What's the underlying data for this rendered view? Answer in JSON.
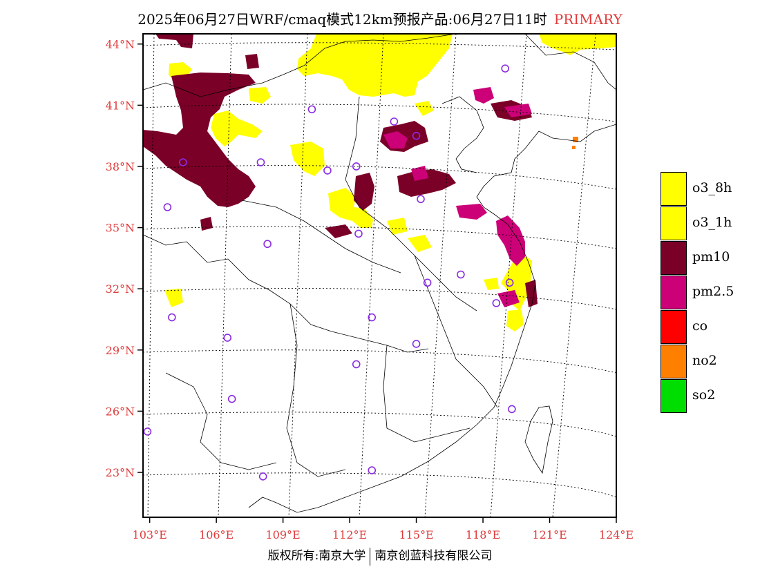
{
  "title": {
    "main": "2025年06月27日WRF/cmaq模式12km预报产品:06月27日11时",
    "tag": "PRIMARY"
  },
  "map": {
    "lon_range": [
      102.7,
      124
    ],
    "lat_range": [
      20.8,
      44.5
    ],
    "lat_ticks": [
      {
        "value": 44,
        "label": "44°N"
      },
      {
        "value": 41,
        "label": "41°N"
      },
      {
        "value": 38,
        "label": "38°N"
      },
      {
        "value": 35,
        "label": "35°N"
      },
      {
        "value": 32,
        "label": "32°N"
      },
      {
        "value": 29,
        "label": "29°N"
      },
      {
        "value": 26,
        "label": "26°N"
      },
      {
        "value": 23,
        "label": "23°N"
      }
    ],
    "lon_ticks": [
      {
        "value": 103,
        "label": "103°E"
      },
      {
        "value": 106,
        "label": "106°E"
      },
      {
        "value": 109,
        "label": "109°E"
      },
      {
        "value": 112,
        "label": "112°E"
      },
      {
        "value": 115,
        "label": "115°E"
      },
      {
        "value": 118,
        "label": "118°E"
      },
      {
        "value": 121,
        "label": "121°E"
      },
      {
        "value": 124,
        "label": "124°E"
      }
    ],
    "stations": [
      [
        119.0,
        42.8
      ],
      [
        110.3,
        40.8
      ],
      [
        114.0,
        40.2
      ],
      [
        115.0,
        39.5
      ],
      [
        104.5,
        38.2
      ],
      [
        108.0,
        38.2
      ],
      [
        111.0,
        37.8
      ],
      [
        112.3,
        38.0
      ],
      [
        115.2,
        36.4
      ],
      [
        103.8,
        36.0
      ],
      [
        112.4,
        34.7
      ],
      [
        108.3,
        34.2
      ],
      [
        117.0,
        32.7
      ],
      [
        119.2,
        32.3
      ],
      [
        115.5,
        32.3
      ],
      [
        118.6,
        31.3
      ],
      [
        104.0,
        30.6
      ],
      [
        113.0,
        30.6
      ],
      [
        106.5,
        29.6
      ],
      [
        115.0,
        29.3
      ],
      [
        112.3,
        28.3
      ],
      [
        119.3,
        26.1
      ],
      [
        106.7,
        26.6
      ],
      [
        102.9,
        25.0
      ],
      [
        108.1,
        22.8
      ],
      [
        113.0,
        23.1
      ]
    ],
    "pollution_colors": {
      "o3": "#ffff00",
      "pm10": "#7a0028",
      "pm25": "#cc0077",
      "co": "#ff0000",
      "no2": "#ff7f00",
      "so2": "#00dd00"
    },
    "station_color": "#8a2be2"
  },
  "legend": [
    {
      "label": "o3_8h",
      "color": "#ffff00"
    },
    {
      "label": "o3_1h",
      "color": "#ffff00"
    },
    {
      "label": "pm10",
      "color": "#7a0028"
    },
    {
      "label": "pm2.5",
      "color": "#cc0077"
    },
    {
      "label": "co",
      "color": "#ff0000"
    },
    {
      "label": "no2",
      "color": "#ff7f00"
    },
    {
      "label": "so2",
      "color": "#00dd00"
    }
  ],
  "footer": {
    "left": "版权所有:南京大学",
    "right": "南京创蓝科技有限公司"
  }
}
